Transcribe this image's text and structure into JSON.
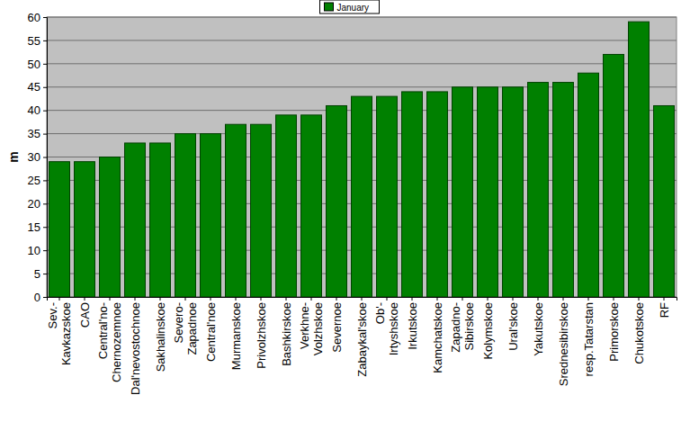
{
  "chart_data": {
    "type": "bar",
    "y_label": "m",
    "categories": [
      "Sev.-\nKavkazskoe",
      "CAO",
      "Central'no-\nChernozemnoe",
      "Dal'nevostochnoe",
      "Sakhalinskoe",
      "Severo-\nZapadnoe",
      "Central'noe",
      "Murmanskoe",
      "Privolzhskoe",
      "Bashkirskoe",
      "Verkhne-\nVolzhskoe",
      "Severnoe",
      "Zabaykal'skoe",
      "Ob'-\nIrtyshskoe",
      "Irkutskoe",
      "Kamchatskoe",
      "Zapadno-\nSibirskoe",
      "Kolymskoe",
      "Ural'skoe",
      "Yakutskoe",
      "Srednesibirskoe",
      "resp.Tatarstan",
      "Primorskoe",
      "Chukotskoe",
      "RF"
    ],
    "series": [
      {
        "name": "January",
        "color": "#008000",
        "values": [
          29,
          29,
          30,
          33,
          33,
          35,
          35,
          37,
          37,
          39,
          39,
          41,
          43,
          43,
          44,
          44,
          45,
          45,
          45,
          46,
          46,
          48,
          52,
          59,
          41
        ]
      }
    ],
    "ylim": [
      0,
      60
    ],
    "yticks": [
      0,
      5,
      10,
      15,
      20,
      25,
      30,
      35,
      40,
      45,
      50,
      55,
      60
    ],
    "grid": true,
    "legend": "top"
  }
}
